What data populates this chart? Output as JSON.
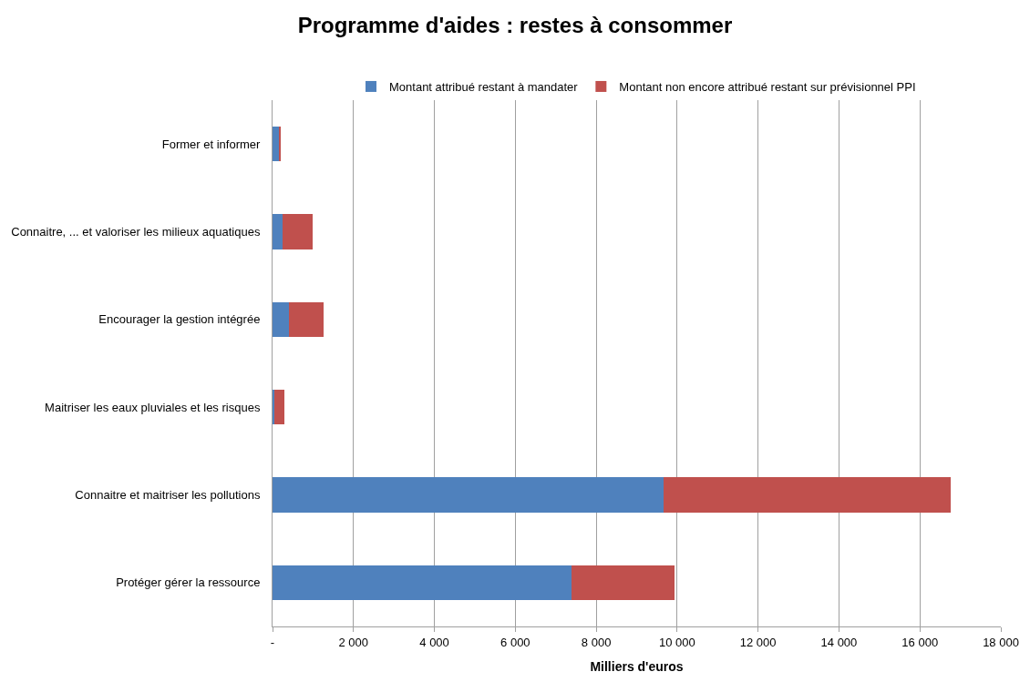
{
  "chart_data": {
    "type": "bar",
    "orientation": "horizontal",
    "stacked": true,
    "title": "Programme d'aides : restes à consommer",
    "xlabel": "Milliers d'euros",
    "categories": [
      "Former et informer",
      "Connaitre, ... et valoriser les milieux aquatiques",
      "Encourager la gestion intégrée",
      "Maitriser les eaux pluviales et les risques",
      "Connaitre et maitriser les pollutions",
      "Protéger gérer la ressource"
    ],
    "series": [
      {
        "name": "Montant attribué restant à mandater",
        "color": "#4f81bd",
        "values": [
          180,
          250,
          400,
          50,
          9670,
          7390
        ]
      },
      {
        "name": "Montant non encore attribué restant sur prévisionnel PPI",
        "color": "#c0504d",
        "values": [
          20,
          750,
          870,
          250,
          7080,
          2550
        ]
      }
    ],
    "xlim": [
      0,
      18000
    ],
    "xticks": [
      {
        "value": 0,
        "label": "-"
      },
      {
        "value": 2000,
        "label": "2 000"
      },
      {
        "value": 4000,
        "label": "4 000"
      },
      {
        "value": 6000,
        "label": "6 000"
      },
      {
        "value": 8000,
        "label": "8 000"
      },
      {
        "value": 10000,
        "label": "10 000"
      },
      {
        "value": 12000,
        "label": "12 000"
      },
      {
        "value": 14000,
        "label": "14 000"
      },
      {
        "value": 16000,
        "label": "16 000"
      },
      {
        "value": 18000,
        "label": "18 000"
      }
    ],
    "grid": "x",
    "legend": "top"
  }
}
